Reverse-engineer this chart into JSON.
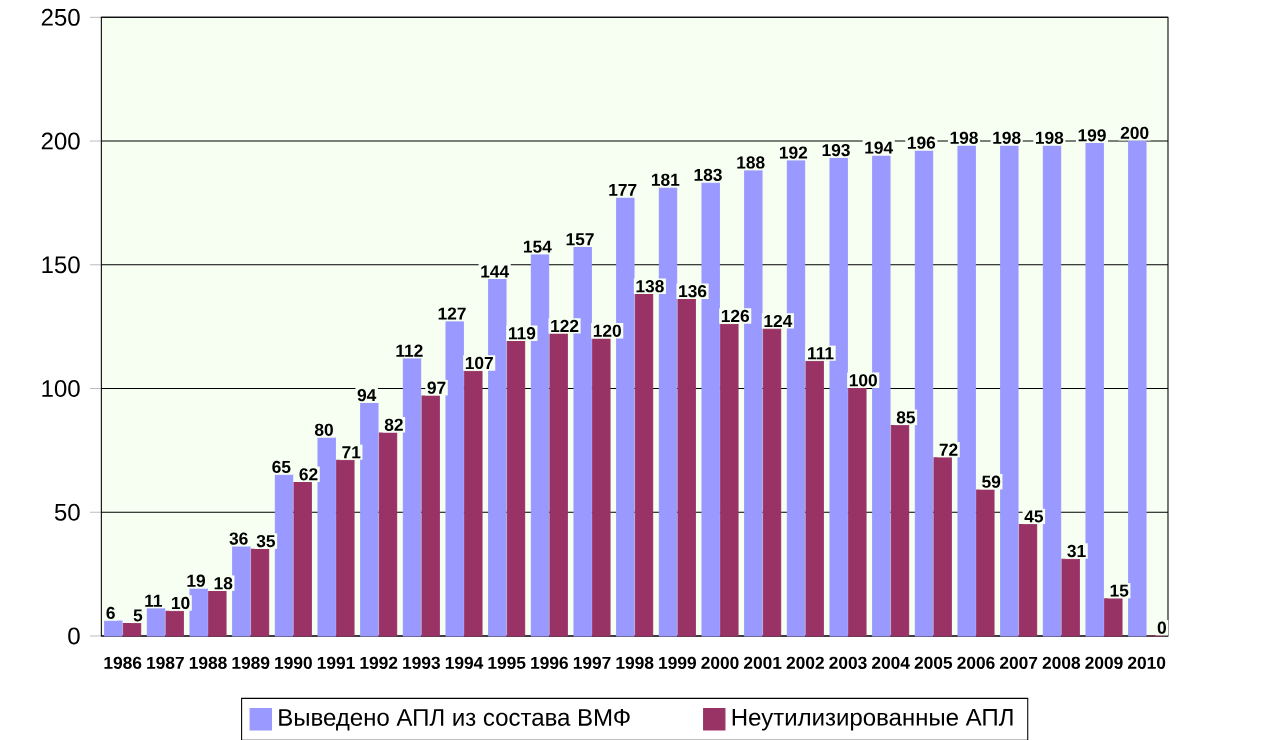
{
  "chart_data": {
    "type": "bar",
    "categories": [
      "1986",
      "1987",
      "1988",
      "1989",
      "1990",
      "1991",
      "1992",
      "1993",
      "1994",
      "1995",
      "1996",
      "1997",
      "1998",
      "1999",
      "2000",
      "2001",
      "2002",
      "2003",
      "2004",
      "2005",
      "2006",
      "2007",
      "2008",
      "2009",
      "2010"
    ],
    "series": [
      {
        "name": "Выведено АПЛ из состава ВМФ",
        "color": "#9999ff",
        "values": [
          6,
          11,
          19,
          36,
          65,
          80,
          94,
          112,
          127,
          144,
          154,
          157,
          177,
          181,
          183,
          188,
          192,
          193,
          194,
          196,
          198,
          198,
          198,
          199,
          200
        ]
      },
      {
        "name": "Неутилизированные АПЛ",
        "color": "#993366",
        "values": [
          5,
          10,
          18,
          35,
          62,
          71,
          82,
          97,
          107,
          119,
          122,
          120,
          138,
          136,
          126,
          124,
          111,
          100,
          85,
          72,
          59,
          45,
          31,
          15,
          0
        ]
      }
    ],
    "ylim": [
      0,
      250
    ],
    "yticks": [
      0,
      50,
      100,
      150,
      200,
      250
    ],
    "grid": "y",
    "legend": "bottom",
    "data_labels": true
  }
}
